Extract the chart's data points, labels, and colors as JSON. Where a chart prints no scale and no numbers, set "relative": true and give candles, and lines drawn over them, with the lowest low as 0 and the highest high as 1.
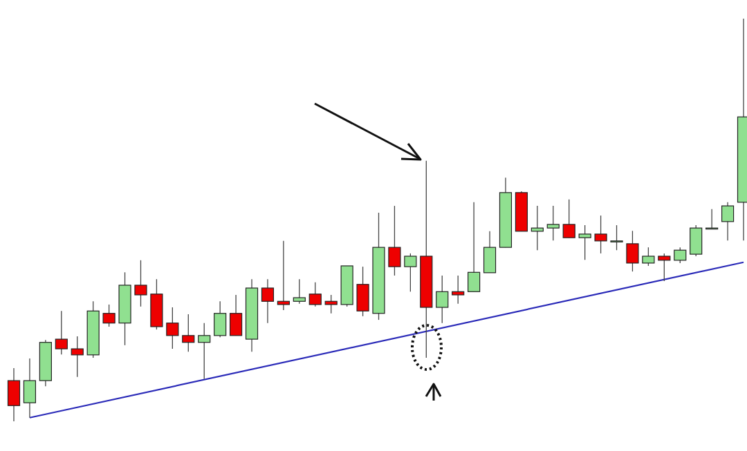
{
  "chart_data": {
    "type": "candlestick",
    "relative": true,
    "categories": [
      null,
      null,
      null,
      null,
      null,
      null,
      null,
      null,
      null,
      null,
      null,
      null,
      null,
      null,
      null,
      null,
      null,
      null,
      null,
      null,
      null,
      null,
      null,
      null,
      null,
      null,
      null,
      null,
      null,
      null,
      null,
      null,
      null,
      null,
      null,
      null,
      null,
      null,
      null,
      null,
      null,
      null,
      null,
      null,
      null,
      null,
      null
    ],
    "series": [
      {
        "ohlc": [
          [
            0.101,
            0.132,
            0,
            0.039
          ],
          [
            0.046,
            0.156,
            0.009,
            0.101
          ],
          [
            0.101,
            0.202,
            0.087,
            0.196
          ],
          [
            0.204,
            0.274,
            0.166,
            0.18
          ],
          [
            0.18,
            0.211,
            0.11,
            0.165
          ],
          [
            0.165,
            0.298,
            0.158,
            0.274
          ],
          [
            0.268,
            0.29,
            0.235,
            0.244
          ],
          [
            0.244,
            0.37,
            0.189,
            0.338
          ],
          [
            0.338,
            0.4,
            0.285,
            0.314
          ],
          [
            0.316,
            0.353,
            0.228,
            0.235
          ],
          [
            0.244,
            0.283,
            0.18,
            0.213
          ],
          [
            0.213,
            0.266,
            0.173,
            0.196
          ],
          [
            0.196,
            0.244,
            0.105,
            0.213
          ],
          [
            0.213,
            0.298,
            0.209,
            0.268
          ],
          [
            0.268,
            0.314,
            0.213,
            0.213
          ],
          [
            0.204,
            0.353,
            0.173,
            0.331
          ],
          [
            0.331,
            0.353,
            0.244,
            0.298
          ],
          [
            0.298,
            0.448,
            0.276,
            0.29
          ],
          [
            0.298,
            0.353,
            0.292,
            0.307
          ],
          [
            0.316,
            0.345,
            0.285,
            0.29
          ],
          [
            0.298,
            0.314,
            0.268,
            0.29
          ],
          [
            0.29,
            0.386,
            0.285,
            0.386
          ],
          [
            0.34,
            0.384,
            0.261,
            0.274
          ],
          [
            0.268,
            0.518,
            0.252,
            0.432
          ],
          [
            0.432,
            0.535,
            0.362,
            0.384
          ],
          [
            0.384,
            0.417,
            0.322,
            0.41
          ],
          [
            0.41,
            0.647,
            0.158,
            0.283
          ],
          [
            0.283,
            0.362,
            0.244,
            0.322
          ],
          [
            0.322,
            0.362,
            0.292,
            0.314
          ],
          [
            0.322,
            0.544,
            0.322,
            0.37
          ],
          [
            0.369,
            0.472,
            0.369,
            0.432
          ],
          [
            0.432,
            0.605,
            0.432,
            0.568
          ],
          [
            0.568,
            0.571,
            0.472,
            0.472
          ],
          [
            0.472,
            0.535,
            0.425,
            0.48
          ],
          [
            0.48,
            0.535,
            0.449,
            0.489
          ],
          [
            0.489,
            0.551,
            0.456,
            0.456
          ],
          [
            0.456,
            0.487,
            0.401,
            0.465
          ],
          [
            0.465,
            0.511,
            0.417,
            0.448
          ],
          [
            0.448,
            0.487,
            0.425,
            0.448
          ],
          [
            0.441,
            0.473,
            0.372,
            0.393
          ],
          [
            0.393,
            0.432,
            0.386,
            0.41
          ],
          [
            0.41,
            0.417,
            0.348,
            0.4
          ],
          [
            0.4,
            0.432,
            0.393,
            0.425
          ],
          [
            0.415,
            0.487,
            0.41,
            0.48
          ],
          [
            0.48,
            0.527,
            0.48,
            0.48
          ],
          [
            0.496,
            0.544,
            0.449,
            0.535
          ],
          [
            0.544,
            1,
            0.449,
            0.756
          ]
        ],
        "colors": [
          "#ee0000",
          "#90e090",
          "#90e090",
          "#ee0000",
          "#ee0000",
          "#90e090",
          "#ee0000",
          "#90e090",
          "#ee0000",
          "#ee0000",
          "#ee0000",
          "#ee0000",
          "#90e090",
          "#90e090",
          "#ee0000",
          "#90e090",
          "#ee0000",
          "#ee0000",
          "#90e090",
          "#ee0000",
          "#ee0000",
          "#90e090",
          "#ee0000",
          "#90e090",
          "#ee0000",
          "#90e090",
          "#ee0000",
          "#90e090",
          "#ee0000",
          "#90e090",
          "#90e090",
          "#90e090",
          "#ee0000",
          "#90e090",
          "#90e090",
          "#ee0000",
          "#90e090",
          "#ee0000",
          "#90e090",
          "#ee0000",
          "#90e090",
          "#ee0000",
          "#90e090",
          "#90e090",
          "#90e090",
          "#90e090",
          "#90e090"
        ]
      },
      {
        "type": "line",
        "values": [
          null,
          0.009,
          null,
          null,
          null,
          null,
          null,
          null,
          null,
          null,
          null,
          null,
          null,
          null,
          null,
          null,
          null,
          null,
          null,
          null,
          null,
          null,
          null,
          null,
          null,
          null,
          null,
          null,
          null,
          null,
          null,
          null,
          null,
          null,
          null,
          null,
          null,
          null,
          null,
          null,
          null,
          null,
          null,
          null,
          null,
          null,
          0.395
        ],
        "color": "#2a2ab8"
      }
    ]
  }
}
